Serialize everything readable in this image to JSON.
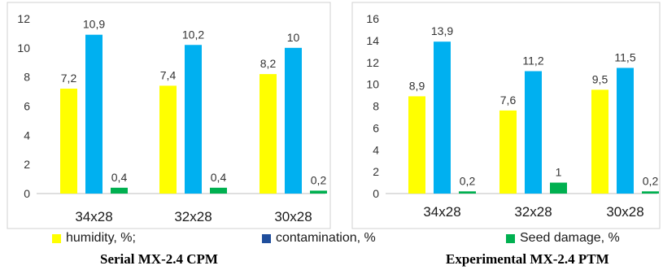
{
  "chart_data": [
    {
      "type": "bar",
      "categories": [
        "34x28",
        "32x28",
        "30x28"
      ],
      "series": [
        {
          "name": "humidity, %;",
          "values": [
            7.2,
            7.4,
            8.2
          ],
          "labels": [
            "7,2",
            "7,4",
            "8,2"
          ],
          "color": "#ffff00"
        },
        {
          "name": "contamination, %",
          "values": [
            10.9,
            10.2,
            10
          ],
          "labels": [
            "10,9",
            "10,2",
            "10"
          ],
          "color": "#00b0f0"
        },
        {
          "name": "Seed damage, %",
          "values": [
            0.4,
            0.4,
            0.2
          ],
          "labels": [
            "0,4",
            "0,4",
            "0,2"
          ],
          "color": "#00b050"
        }
      ],
      "ylim": [
        0,
        12
      ],
      "yticks": [
        0,
        2,
        4,
        6,
        8,
        10,
        12
      ],
      "grid": false,
      "caption": "Serial MX-2.4 CPM"
    },
    {
      "type": "bar",
      "categories": [
        "34x28",
        "32x28",
        "30x28"
      ],
      "series": [
        {
          "name": "humidity, %;",
          "values": [
            8.9,
            7.6,
            9.5
          ],
          "labels": [
            "8,9",
            "7,6",
            "9,5"
          ],
          "color": "#ffff00"
        },
        {
          "name": "contamination, %",
          "values": [
            13.9,
            11.2,
            11.5
          ],
          "labels": [
            "13,9",
            "11,2",
            "11,5"
          ],
          "color": "#00b0f0"
        },
        {
          "name": "Seed damage, %",
          "values": [
            0.2,
            1,
            0.2
          ],
          "labels": [
            "0,2",
            "1",
            "0,2"
          ],
          "color": "#00b050"
        }
      ],
      "ylim": [
        0,
        16
      ],
      "yticks": [
        0,
        2,
        4,
        6,
        8,
        10,
        12,
        14,
        16
      ],
      "grid": false,
      "caption": "Experimental MX-2.4 PTM"
    }
  ],
  "legend": {
    "placement": "bottom",
    "items": [
      {
        "label": "humidity, %;",
        "color": "#ffff00"
      },
      {
        "label": "contamination, %",
        "color": "#1f4e9c"
      },
      {
        "label": "Seed damage, %",
        "color": "#00b050"
      }
    ]
  }
}
